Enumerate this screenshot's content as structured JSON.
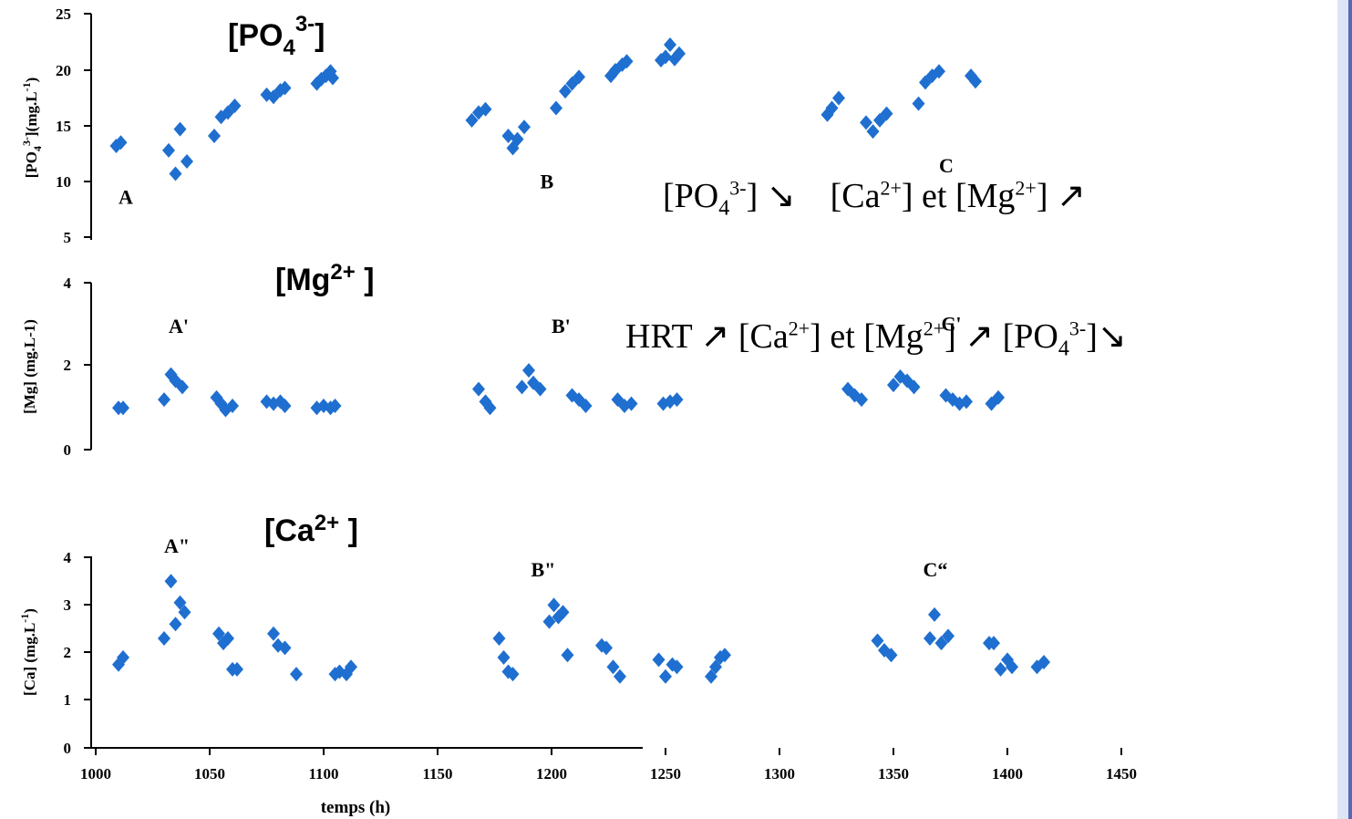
{
  "colors": {
    "marker": "#1f6fd0",
    "right_bar_light": "#dde4f5",
    "right_bar_dark": "#5a67b4"
  },
  "chart_data": [
    {
      "type": "scatter",
      "title": "[PO4^3-]",
      "ylabel": "[PO4^3-](mg.L^-1)",
      "ylim": [
        5,
        25
      ],
      "yticks": [
        "5",
        "10",
        "15",
        "20",
        "25"
      ],
      "annotations": [
        {
          "text": "A",
          "x": 1010,
          "y": 8.0
        },
        {
          "text": "B",
          "x": 1195,
          "y": 9.4
        },
        {
          "text": "C",
          "x": 1370,
          "y": 10.8
        }
      ],
      "series": [
        {
          "values": [
            [
              1009,
              13.2
            ],
            [
              1011,
              13.5
            ],
            [
              1032,
              12.8
            ],
            [
              1035,
              10.7
            ],
            [
              1037,
              14.7
            ],
            [
              1040,
              11.8
            ],
            [
              1052,
              14.1
            ],
            [
              1055,
              15.8
            ],
            [
              1058,
              16.2
            ],
            [
              1061,
              16.8
            ],
            [
              1075,
              17.8
            ],
            [
              1078,
              17.6
            ],
            [
              1081,
              18.2
            ],
            [
              1083,
              18.4
            ],
            [
              1097,
              18.8
            ],
            [
              1099,
              19.2
            ],
            [
              1101,
              19.5
            ],
            [
              1103,
              19.9
            ],
            [
              1104,
              19.3
            ],
            [
              1165,
              15.5
            ],
            [
              1168,
              16.2
            ],
            [
              1171,
              16.5
            ],
            [
              1181,
              14.1
            ],
            [
              1183,
              13.0
            ],
            [
              1185,
              13.8
            ],
            [
              1188,
              14.9
            ],
            [
              1202,
              16.6
            ],
            [
              1206,
              18.1
            ],
            [
              1209,
              18.8
            ],
            [
              1212,
              19.4
            ],
            [
              1226,
              19.5
            ],
            [
              1228,
              20.0
            ],
            [
              1231,
              20.5
            ],
            [
              1233,
              20.8
            ],
            [
              1248,
              20.9
            ],
            [
              1250,
              21.2
            ],
            [
              1252,
              22.3
            ],
            [
              1254,
              21.0
            ],
            [
              1256,
              21.5
            ],
            [
              1321,
              16.0
            ],
            [
              1323,
              16.6
            ],
            [
              1326,
              17.5
            ],
            [
              1338,
              15.3
            ],
            [
              1341,
              14.5
            ],
            [
              1344,
              15.5
            ],
            [
              1347,
              16.1
            ],
            [
              1361,
              17.0
            ],
            [
              1364,
              18.9
            ],
            [
              1367,
              19.5
            ],
            [
              1370,
              19.9
            ],
            [
              1384,
              19.5
            ],
            [
              1386,
              19.0
            ]
          ]
        }
      ]
    },
    {
      "type": "scatter",
      "title": "[Mg2+ ]",
      "ylabel": "[Mg] (mg.L-1)",
      "ylim": [
        0,
        4
      ],
      "yticks": [
        "0",
        "2",
        "4"
      ],
      "annotations": [
        {
          "text": "A'",
          "x": 1032,
          "y": 2.8
        },
        {
          "text": "B'",
          "x": 1200,
          "y": 2.8
        },
        {
          "text": "C'",
          "x": 1371,
          "y": 2.85
        }
      ],
      "series": [
        {
          "values": [
            [
              1010,
              1.0
            ],
            [
              1012,
              1.0
            ],
            [
              1030,
              1.2
            ],
            [
              1033,
              1.8
            ],
            [
              1035,
              1.65
            ],
            [
              1038,
              1.5
            ],
            [
              1053,
              1.25
            ],
            [
              1055,
              1.1
            ],
            [
              1057,
              0.95
            ],
            [
              1060,
              1.05
            ],
            [
              1075,
              1.15
            ],
            [
              1078,
              1.1
            ],
            [
              1081,
              1.15
            ],
            [
              1083,
              1.05
            ],
            [
              1097,
              1.0
            ],
            [
              1100,
              1.05
            ],
            [
              1103,
              1.0
            ],
            [
              1105,
              1.05
            ],
            [
              1168,
              1.45
            ],
            [
              1171,
              1.15
            ],
            [
              1173,
              1.0
            ],
            [
              1187,
              1.5
            ],
            [
              1190,
              1.9
            ],
            [
              1192,
              1.6
            ],
            [
              1195,
              1.45
            ],
            [
              1209,
              1.3
            ],
            [
              1212,
              1.2
            ],
            [
              1215,
              1.05
            ],
            [
              1229,
              1.2
            ],
            [
              1232,
              1.05
            ],
            [
              1235,
              1.1
            ],
            [
              1249,
              1.1
            ],
            [
              1252,
              1.15
            ],
            [
              1255,
              1.2
            ],
            [
              1330,
              1.45
            ],
            [
              1333,
              1.3
            ],
            [
              1336,
              1.2
            ],
            [
              1350,
              1.55
            ],
            [
              1353,
              1.75
            ],
            [
              1356,
              1.65
            ],
            [
              1359,
              1.5
            ],
            [
              1373,
              1.3
            ],
            [
              1376,
              1.2
            ],
            [
              1379,
              1.1
            ],
            [
              1382,
              1.15
            ],
            [
              1393,
              1.1
            ],
            [
              1396,
              1.25
            ]
          ]
        }
      ]
    },
    {
      "type": "scatter",
      "title": "[Ca2+ ]",
      "ylabel": "[Ca] (mg.L^-1)",
      "xlabel": "temps (h)",
      "ylim": [
        0,
        4
      ],
      "xlim": [
        1000,
        1475
      ],
      "yticks": [
        "0",
        "1",
        "2",
        "3",
        "4"
      ],
      "xticks": [
        "1000",
        "1050",
        "1100",
        "1150",
        "1200",
        "1250",
        "1300",
        "1350",
        "1400",
        "1450"
      ],
      "annotations": [
        {
          "text": "A\"",
          "x": 1030,
          "y": 4.1
        },
        {
          "text": "B\"",
          "x": 1191,
          "y": 3.6
        },
        {
          "text": "C“",
          "x": 1363,
          "y": 3.6
        }
      ],
      "series": [
        {
          "values": [
            [
              1010,
              1.75
            ],
            [
              1012,
              1.9
            ],
            [
              1030,
              2.3
            ],
            [
              1033,
              3.5
            ],
            [
              1035,
              2.6
            ],
            [
              1037,
              3.05
            ],
            [
              1039,
              2.85
            ],
            [
              1054,
              2.4
            ],
            [
              1056,
              2.2
            ],
            [
              1058,
              2.3
            ],
            [
              1060,
              1.65
            ],
            [
              1062,
              1.65
            ],
            [
              1078,
              2.4
            ],
            [
              1080,
              2.15
            ],
            [
              1083,
              2.1
            ],
            [
              1088,
              1.55
            ],
            [
              1105,
              1.55
            ],
            [
              1107,
              1.6
            ],
            [
              1110,
              1.55
            ],
            [
              1112,
              1.7
            ],
            [
              1177,
              2.3
            ],
            [
              1179,
              1.9
            ],
            [
              1181,
              1.6
            ],
            [
              1183,
              1.55
            ],
            [
              1199,
              2.65
            ],
            [
              1201,
              3.0
            ],
            [
              1203,
              2.75
            ],
            [
              1205,
              2.85
            ],
            [
              1207,
              1.95
            ],
            [
              1222,
              2.15
            ],
            [
              1224,
              2.1
            ],
            [
              1227,
              1.7
            ],
            [
              1230,
              1.5
            ],
            [
              1247,
              1.85
            ],
            [
              1250,
              1.5
            ],
            [
              1253,
              1.75
            ],
            [
              1255,
              1.7
            ],
            [
              1270,
              1.5
            ],
            [
              1272,
              1.7
            ],
            [
              1274,
              1.9
            ],
            [
              1276,
              1.95
            ],
            [
              1343,
              2.25
            ],
            [
              1346,
              2.05
            ],
            [
              1349,
              1.95
            ],
            [
              1366,
              2.3
            ],
            [
              1368,
              2.8
            ],
            [
              1371,
              2.2
            ],
            [
              1374,
              2.35
            ],
            [
              1392,
              2.2
            ],
            [
              1394,
              2.2
            ],
            [
              1397,
              1.65
            ],
            [
              1400,
              1.85
            ],
            [
              1402,
              1.7
            ],
            [
              1413,
              1.7
            ],
            [
              1416,
              1.8
            ]
          ]
        }
      ]
    }
  ],
  "notes": {
    "line1": {
      "po4": "[PO",
      "sub": "4",
      "sup": "3-",
      "close_arrow": "] ↘",
      "ca": "[Ca",
      "ca_sup": "2+",
      "et": "] et [Mg",
      "mg_sup": "2+",
      "end": "] ↗"
    },
    "line2": {
      "hrt": "HRT ↗  [Ca",
      "ca_sup": "2+",
      "et": "] et [Mg",
      "mg_sup": "2+",
      "mid": "] ↗   [PO",
      "sub": "4",
      "sup": "3-",
      "end": "]↘"
    }
  }
}
